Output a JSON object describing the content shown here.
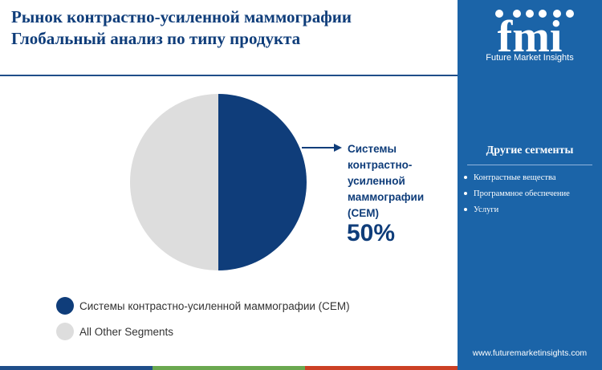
{
  "header": {
    "title_line1": "Рынок контрастно-усиленной маммографии",
    "title_line2": "Глобальный анализ по типу продукта"
  },
  "brand": {
    "logo_text": "fmi",
    "tagline": "Future Market Insights",
    "website": "www.futuremarketinsights.com"
  },
  "side_panel": {
    "title": "Другие сегменты",
    "items": [
      "Контрастные вещества",
      "Программное обеспечение",
      "Услуги"
    ]
  },
  "callout": {
    "label": "Системы контрастно-усиленной маммографии (CEM)",
    "value": "50%"
  },
  "colors": {
    "primary": "#0f3d7a",
    "other": "#dddddd",
    "panel": "#1b64a8",
    "bar": [
      "#1f4e89",
      "#6aa84f",
      "#cc4125"
    ]
  },
  "chart_data": {
    "type": "pie",
    "slices": [
      {
        "label": "Системы контрастно-усиленной маммографии (CEM)",
        "value": 50,
        "color": "#0f3d7a"
      },
      {
        "label": "All Other Segments",
        "value": 50,
        "color": "#dddddd"
      }
    ],
    "legend": [
      "Системы контрастно-усиленной маммографии (CEM)",
      "All Other Segments"
    ],
    "legend_position": "bottom-left"
  }
}
